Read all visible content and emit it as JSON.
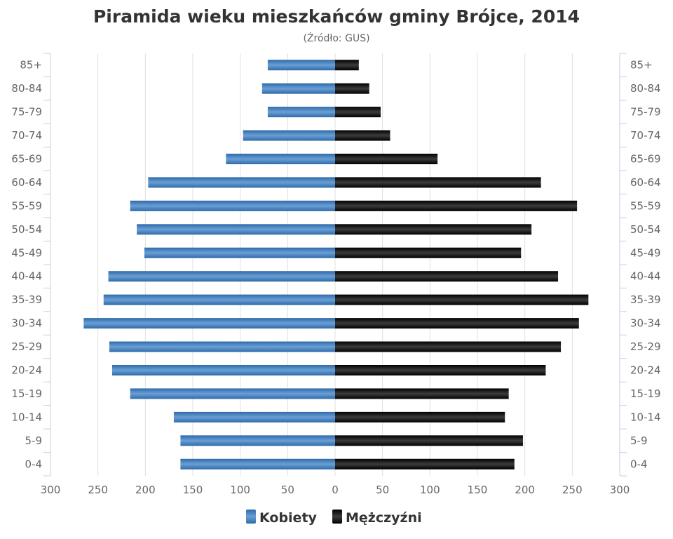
{
  "chart_data": {
    "type": "bar",
    "orientation": "horizontal-population-pyramid",
    "title": "Piramida wieku mieszkańców gminy Brójce, 2014",
    "subtitle": "(Źródło: GUS)",
    "categories": [
      "85+",
      "80-84",
      "75-79",
      "70-74",
      "65-69",
      "60-64",
      "55-59",
      "50-54",
      "45-49",
      "40-44",
      "35-39",
      "30-34",
      "25-29",
      "20-24",
      "15-19",
      "10-14",
      "5-9",
      "0-4"
    ],
    "series": [
      {
        "name": "Kobiety",
        "side": "left",
        "color": "#4a86c5",
        "values": [
          71,
          77,
          71,
          97,
          115,
          197,
          216,
          209,
          201,
          239,
          244,
          265,
          238,
          235,
          216,
          170,
          163,
          163
        ]
      },
      {
        "name": "Mężczyźni",
        "side": "right",
        "color": "#222222",
        "values": [
          25,
          36,
          48,
          58,
          108,
          217,
          255,
          207,
          196,
          235,
          267,
          257,
          238,
          222,
          183,
          179,
          198,
          189
        ]
      }
    ],
    "xlim": [
      -300,
      300
    ],
    "xticks": [
      -300,
      -250,
      -200,
      -150,
      -100,
      -50,
      0,
      50,
      100,
      150,
      200,
      250,
      300
    ],
    "xtick_labels": [
      "300",
      "250",
      "200",
      "150",
      "100",
      "50",
      "0",
      "50",
      "100",
      "150",
      "200",
      "250",
      "300"
    ],
    "grid": true,
    "legend_position": "bottom-center",
    "legend": [
      "Kobiety",
      "Mężczyźni"
    ]
  }
}
